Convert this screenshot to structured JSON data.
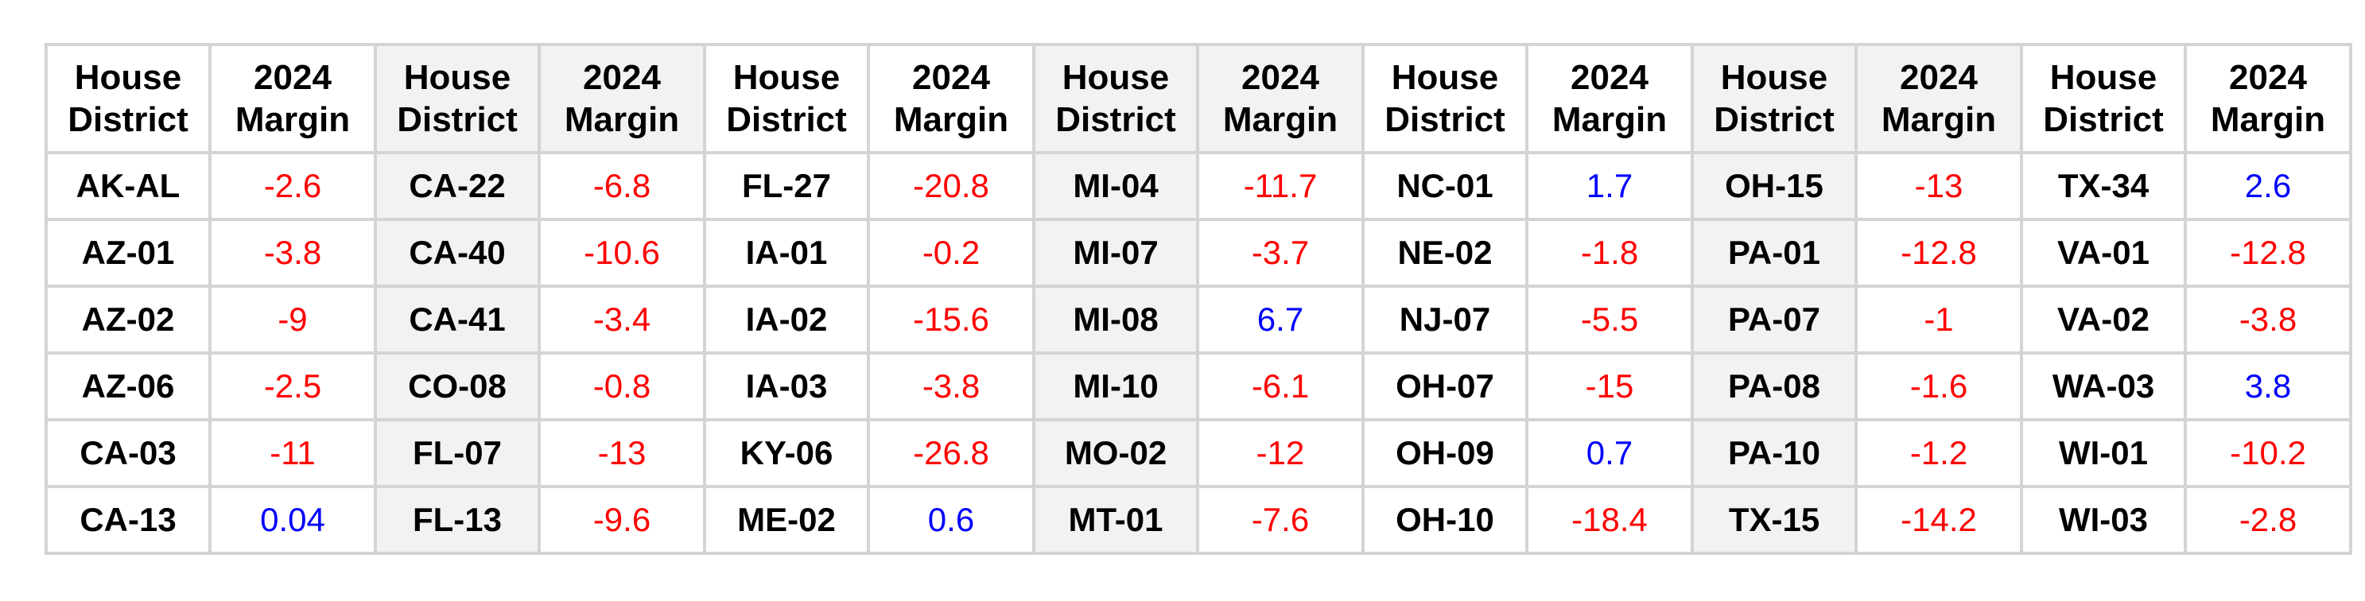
{
  "colors": {
    "negative": "#ff0000",
    "positive": "#0000ff",
    "shade": "#f2f2f2",
    "border": "#d4d4d4"
  },
  "chart_data": {
    "type": "table",
    "header": {
      "district_line1": "House",
      "district_line2": "District",
      "margin_line1": "2024",
      "margin_line2": "Margin"
    },
    "column_groups": [
      {
        "districts": [
          "AK-AL",
          "AZ-01",
          "AZ-02",
          "AZ-06",
          "CA-03",
          "CA-13"
        ],
        "margins": [
          -2.6,
          -3.8,
          -9,
          -2.5,
          -11,
          0.04
        ]
      },
      {
        "districts": [
          "CA-22",
          "CA-40",
          "CA-41",
          "CO-08",
          "FL-07",
          "FL-13"
        ],
        "margins": [
          -6.8,
          -10.6,
          -3.4,
          -0.8,
          -13,
          -9.6
        ]
      },
      {
        "districts": [
          "FL-27",
          "IA-01",
          "IA-02",
          "IA-03",
          "KY-06",
          "ME-02"
        ],
        "margins": [
          -20.8,
          -0.2,
          -15.6,
          -3.8,
          -26.8,
          0.6
        ]
      },
      {
        "districts": [
          "MI-04",
          "MI-07",
          "MI-08",
          "MI-10",
          "MO-02",
          "MT-01"
        ],
        "margins": [
          -11.7,
          -3.7,
          6.7,
          -6.1,
          -12,
          -7.6
        ]
      },
      {
        "districts": [
          "NC-01",
          "NE-02",
          "NJ-07",
          "OH-07",
          "OH-09",
          "OH-10"
        ],
        "margins": [
          1.7,
          -1.8,
          -5.5,
          -15,
          0.7,
          -18.4
        ]
      },
      {
        "districts": [
          "OH-15",
          "PA-01",
          "PA-07",
          "PA-08",
          "PA-10",
          "TX-15"
        ],
        "margins": [
          -13,
          -12.8,
          -1,
          -1.6,
          -1.2,
          -14.2
        ]
      },
      {
        "districts": [
          "TX-34",
          "VA-01",
          "VA-02",
          "WA-03",
          "WI-01",
          "WI-03"
        ],
        "margins": [
          2.6,
          -12.8,
          -3.8,
          3.8,
          -10.2,
          -2.8
        ]
      }
    ]
  }
}
